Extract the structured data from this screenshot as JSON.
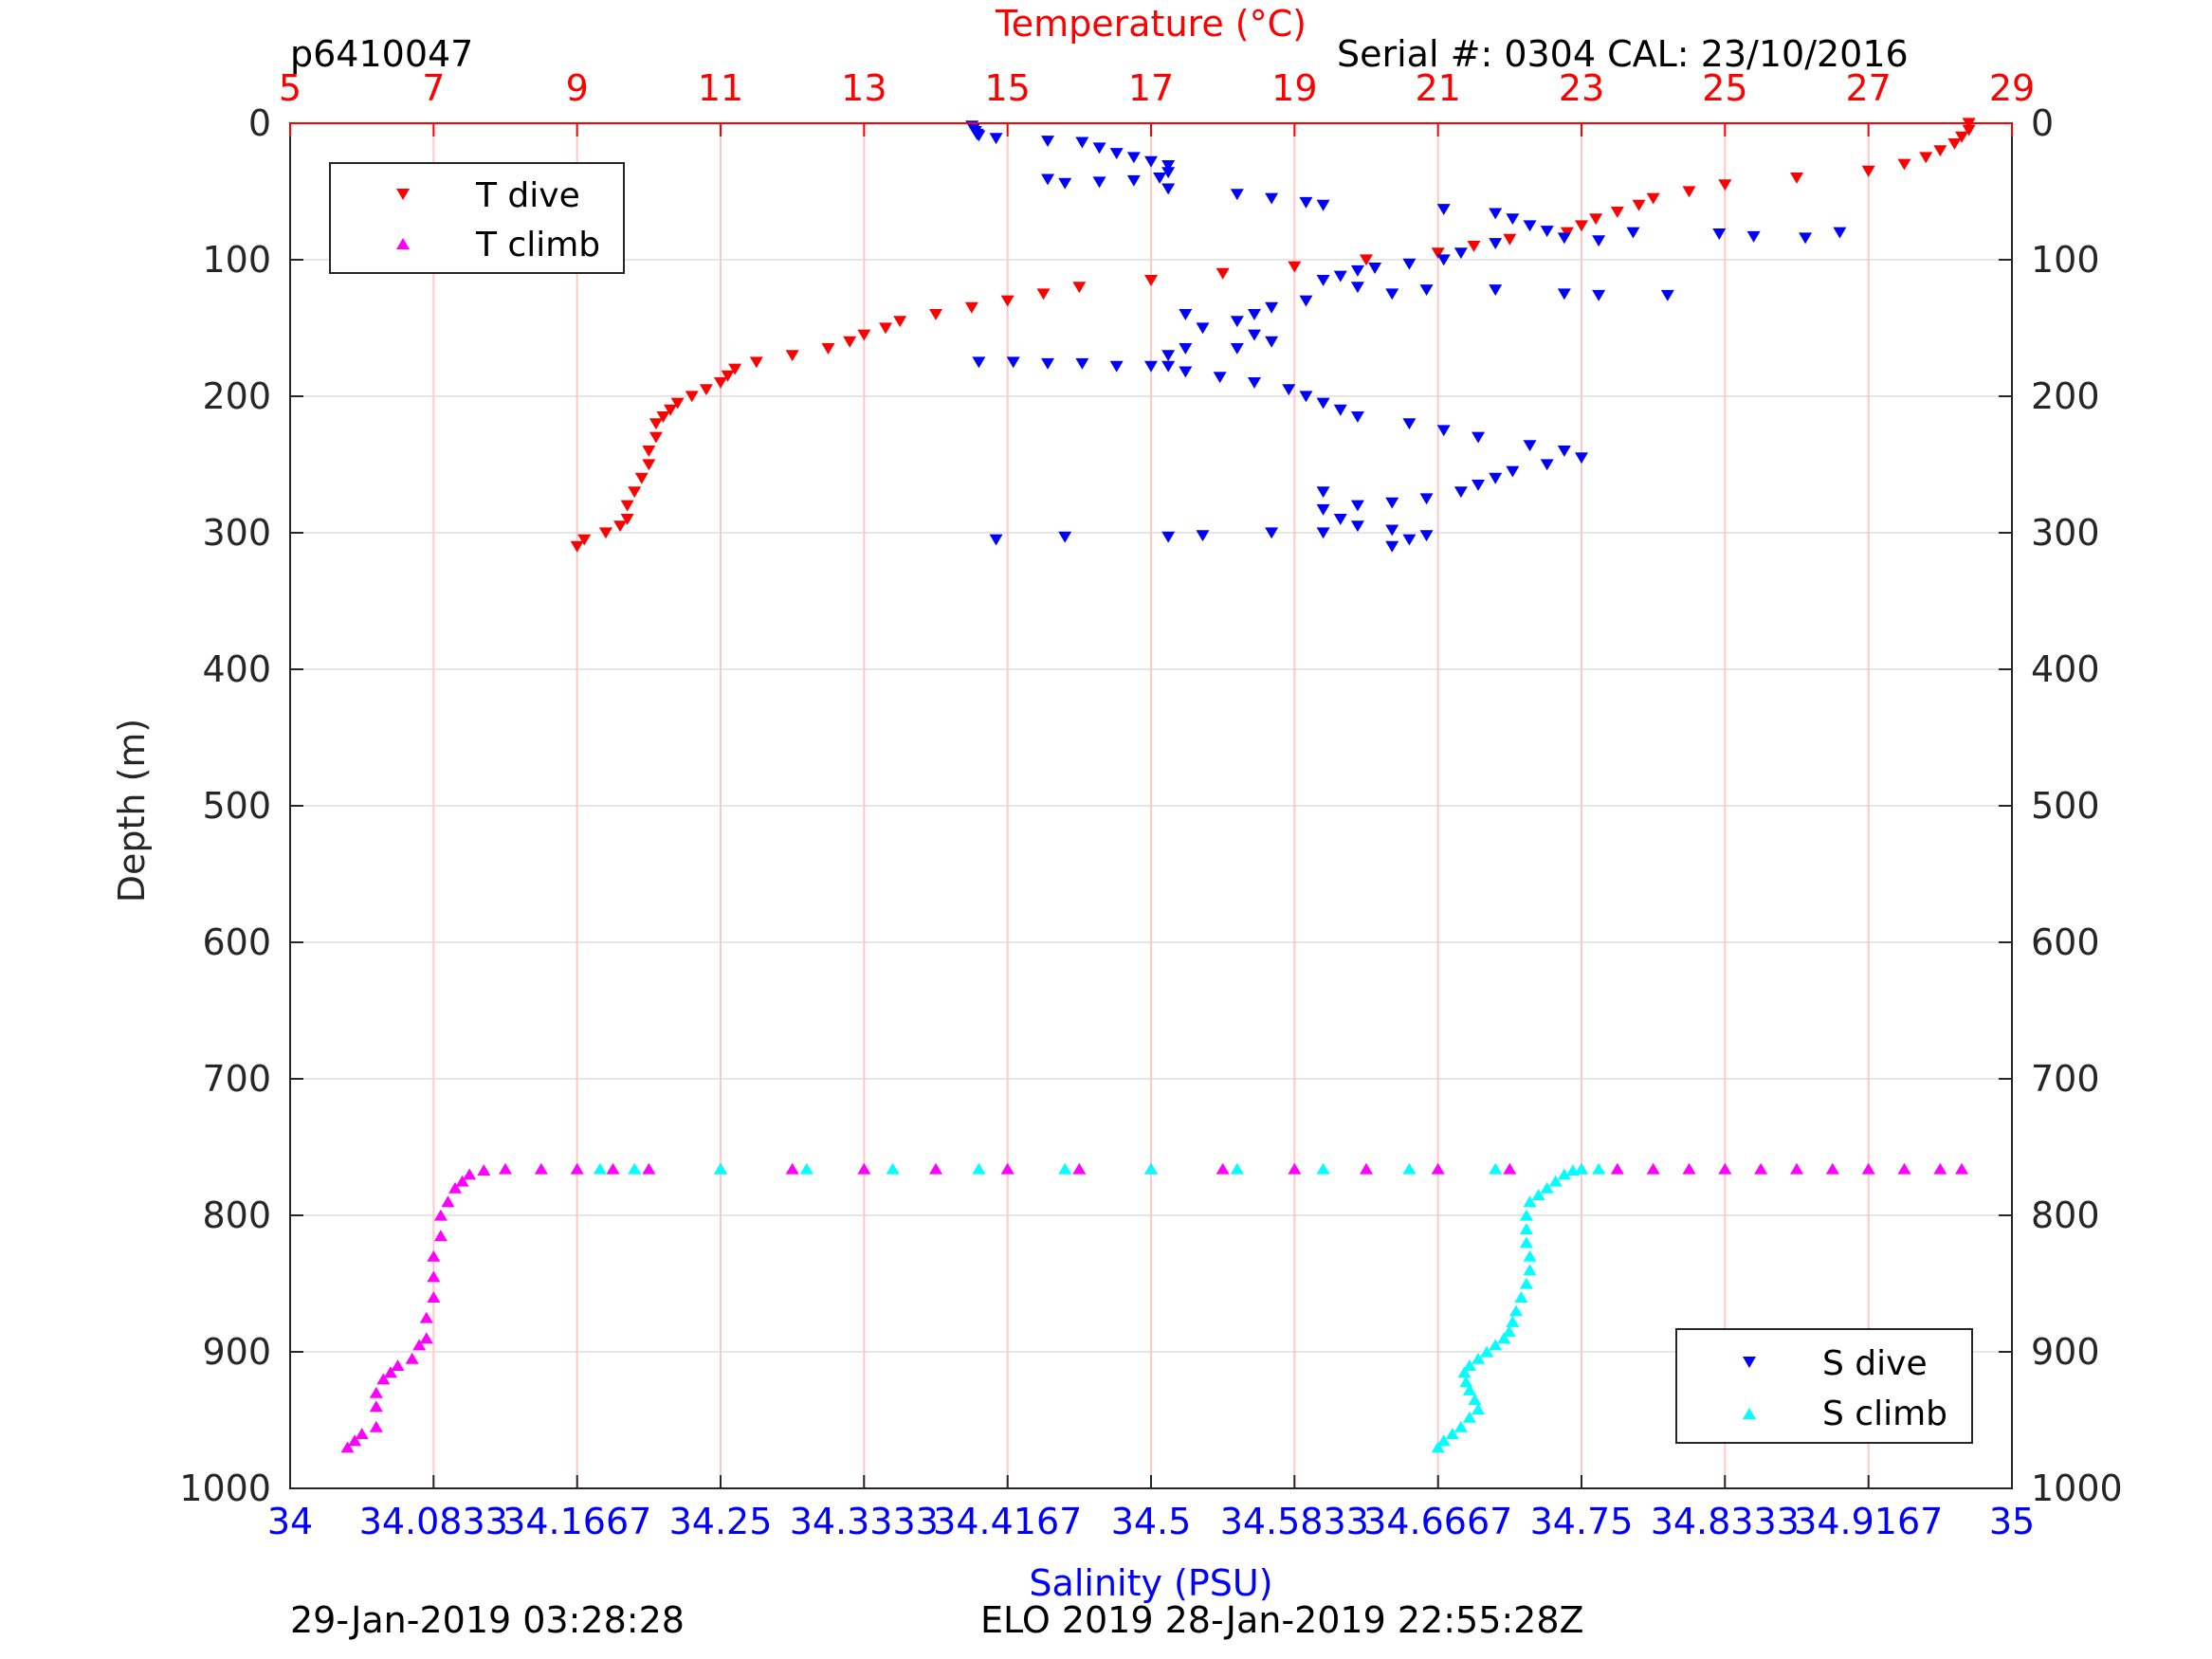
{
  "header": {
    "profile_id": "p6410047",
    "serial": "Serial #: 0304  CAL: 23/10/2016"
  },
  "footer": {
    "left": "29-Jan-2019 03:28:28",
    "center": "ELO 2019 28-Jan-2019 22:55:28Z"
  },
  "colors": {
    "t_dive": "#ff0000",
    "t_climb": "#ff00ff",
    "s_dive": "#0000ff",
    "s_climb": "#00ffff",
    "temp_axis": "#ff0000",
    "sal_axis": "#0000ff",
    "grid": "#e6e6e6",
    "temp_grid": "#ffc8c8"
  },
  "chart_data": {
    "type": "scatter",
    "title": "",
    "ylabel": "Depth (m)",
    "ylim": [
      0,
      1000
    ],
    "y_reversed": true,
    "y_ticks": [
      0,
      100,
      200,
      300,
      400,
      500,
      600,
      700,
      800,
      900,
      1000
    ],
    "y_tick_labels": [
      "0",
      "100",
      "200",
      "300",
      "400",
      "500",
      "600",
      "700",
      "800",
      "900",
      "1000"
    ],
    "temperature_axis": {
      "label": "Temperature (°C)",
      "position": "top",
      "lim": [
        5,
        29
      ],
      "ticks": [
        5,
        7,
        9,
        11,
        13,
        15,
        17,
        19,
        21,
        23,
        25,
        27,
        29
      ],
      "tick_labels": [
        "5",
        "7",
        "9",
        "11",
        "13",
        "15",
        "17",
        "19",
        "21",
        "23",
        "25",
        "27",
        "29"
      ]
    },
    "salinity_axis": {
      "label": "Salinity (PSU)",
      "position": "bottom",
      "lim": [
        34,
        35
      ],
      "ticks": [
        34,
        34.0833,
        34.1667,
        34.25,
        34.3333,
        34.4167,
        34.5,
        34.5833,
        34.6667,
        34.75,
        34.8333,
        34.9167,
        35
      ],
      "tick_labels": [
        "34",
        "34.0833",
        "34.1667",
        "34.25",
        "34.3333",
        "34.4167",
        "34.5",
        "34.5833",
        "34.6667",
        "34.75",
        "34.8333",
        "34.9167",
        "35"
      ]
    },
    "legends": [
      {
        "placement": "top-left",
        "entries": [
          {
            "label": "T dive",
            "marker": "triangle-down",
            "color": "#ff0000"
          },
          {
            "label": "T climb",
            "marker": "triangle-up",
            "color": "#ff00ff"
          }
        ]
      },
      {
        "placement": "bottom-right",
        "entries": [
          {
            "label": "S dive",
            "marker": "triangle-down",
            "color": "#0000ff"
          },
          {
            "label": "S climb",
            "marker": "triangle-up",
            "color": "#00ffff"
          }
        ]
      }
    ],
    "series": [
      {
        "name": "T dive",
        "axis": "temperature",
        "marker": "triangle-down",
        "color": "#ff0000",
        "points": [
          [
            28.4,
            0
          ],
          [
            28.4,
            5
          ],
          [
            28.3,
            10
          ],
          [
            28.2,
            15
          ],
          [
            28.0,
            20
          ],
          [
            27.8,
            25
          ],
          [
            27.5,
            30
          ],
          [
            27.0,
            35
          ],
          [
            26.0,
            40
          ],
          [
            25.0,
            45
          ],
          [
            24.5,
            50
          ],
          [
            24.0,
            55
          ],
          [
            23.8,
            60
          ],
          [
            23.5,
            65
          ],
          [
            23.2,
            70
          ],
          [
            23.0,
            75
          ],
          [
            22.8,
            80
          ],
          [
            22.0,
            85
          ],
          [
            21.5,
            90
          ],
          [
            21.0,
            95
          ],
          [
            20.0,
            100
          ],
          [
            19.0,
            105
          ],
          [
            18.0,
            110
          ],
          [
            17.0,
            115
          ],
          [
            16.0,
            120
          ],
          [
            15.5,
            125
          ],
          [
            15.0,
            130
          ],
          [
            14.5,
            135
          ],
          [
            14.0,
            140
          ],
          [
            13.5,
            145
          ],
          [
            13.3,
            150
          ],
          [
            13.0,
            155
          ],
          [
            12.8,
            160
          ],
          [
            12.5,
            165
          ],
          [
            12.0,
            170
          ],
          [
            11.5,
            175
          ],
          [
            11.2,
            180
          ],
          [
            11.1,
            185
          ],
          [
            11.0,
            190
          ],
          [
            10.8,
            195
          ],
          [
            10.6,
            200
          ],
          [
            10.4,
            205
          ],
          [
            10.3,
            210
          ],
          [
            10.2,
            215
          ],
          [
            10.1,
            220
          ],
          [
            10.1,
            230
          ],
          [
            10.0,
            240
          ],
          [
            10.0,
            250
          ],
          [
            9.9,
            260
          ],
          [
            9.8,
            270
          ],
          [
            9.7,
            280
          ],
          [
            9.7,
            290
          ],
          [
            9.6,
            295
          ],
          [
            9.4,
            300
          ],
          [
            9.1,
            305
          ],
          [
            9.0,
            310
          ]
        ]
      },
      {
        "name": "T climb",
        "axis": "temperature",
        "marker": "triangle-up",
        "color": "#ff00ff",
        "points": [
          [
            5.8,
            970
          ],
          [
            5.9,
            965
          ],
          [
            6.0,
            960
          ],
          [
            6.2,
            955
          ],
          [
            6.2,
            940
          ],
          [
            6.2,
            930
          ],
          [
            6.3,
            920
          ],
          [
            6.4,
            915
          ],
          [
            6.5,
            910
          ],
          [
            6.7,
            905
          ],
          [
            6.8,
            895
          ],
          [
            6.9,
            890
          ],
          [
            6.9,
            875
          ],
          [
            7.0,
            860
          ],
          [
            7.0,
            845
          ],
          [
            7.0,
            830
          ],
          [
            7.1,
            815
          ],
          [
            7.1,
            800
          ],
          [
            7.2,
            790
          ],
          [
            7.3,
            780
          ],
          [
            7.4,
            775
          ],
          [
            7.5,
            770
          ],
          [
            7.7,
            767
          ],
          [
            8.0,
            766
          ],
          [
            8.5,
            766
          ],
          [
            9.0,
            766
          ],
          [
            9.5,
            766
          ],
          [
            10.0,
            766
          ],
          [
            11.0,
            766
          ],
          [
            12.0,
            766
          ],
          [
            13.0,
            766
          ],
          [
            14.0,
            766
          ],
          [
            15.0,
            766
          ],
          [
            16.0,
            766
          ],
          [
            17.0,
            766
          ],
          [
            18.0,
            766
          ],
          [
            19.0,
            766
          ],
          [
            20.0,
            766
          ],
          [
            21.0,
            766
          ],
          [
            22.0,
            766
          ],
          [
            23.0,
            766
          ],
          [
            23.5,
            766
          ],
          [
            24.0,
            766
          ],
          [
            24.5,
            766
          ],
          [
            25.0,
            766
          ],
          [
            25.5,
            766
          ],
          [
            26.0,
            766
          ],
          [
            26.5,
            766
          ],
          [
            27.0,
            766
          ],
          [
            27.5,
            766
          ],
          [
            28.0,
            766
          ],
          [
            28.3,
            766
          ]
        ]
      },
      {
        "name": "S dive",
        "axis": "salinity",
        "marker": "triangle-down",
        "color": "#0000ff",
        "points": [
          [
            34.396,
            2
          ],
          [
            34.397,
            4
          ],
          [
            34.398,
            6
          ],
          [
            34.399,
            8
          ],
          [
            34.4,
            9
          ],
          [
            34.41,
            11
          ],
          [
            34.44,
            13
          ],
          [
            34.46,
            14
          ],
          [
            34.47,
            18
          ],
          [
            34.48,
            22
          ],
          [
            34.49,
            25
          ],
          [
            34.5,
            28
          ],
          [
            34.51,
            31
          ],
          [
            34.51,
            36
          ],
          [
            34.505,
            40
          ],
          [
            34.49,
            42
          ],
          [
            34.47,
            43
          ],
          [
            34.45,
            44
          ],
          [
            34.44,
            41
          ],
          [
            34.51,
            48
          ],
          [
            34.55,
            52
          ],
          [
            34.57,
            55
          ],
          [
            34.59,
            58
          ],
          [
            34.6,
            60
          ],
          [
            34.67,
            63
          ],
          [
            34.7,
            66
          ],
          [
            34.71,
            70
          ],
          [
            34.72,
            75
          ],
          [
            34.73,
            79
          ],
          [
            34.74,
            84
          ],
          [
            34.76,
            86
          ],
          [
            34.78,
            80
          ],
          [
            34.83,
            81
          ],
          [
            34.85,
            83
          ],
          [
            34.88,
            84
          ],
          [
            34.9,
            80
          ],
          [
            34.7,
            88
          ],
          [
            34.68,
            95
          ],
          [
            34.67,
            100
          ],
          [
            34.65,
            103
          ],
          [
            34.63,
            106
          ],
          [
            34.62,
            108
          ],
          [
            34.61,
            112
          ],
          [
            34.6,
            115
          ],
          [
            34.62,
            120
          ],
          [
            34.64,
            125
          ],
          [
            34.66,
            122
          ],
          [
            34.7,
            122
          ],
          [
            34.74,
            125
          ],
          [
            34.76,
            126
          ],
          [
            34.8,
            126
          ],
          [
            34.59,
            130
          ],
          [
            34.57,
            135
          ],
          [
            34.56,
            140
          ],
          [
            34.55,
            145
          ],
          [
            34.52,
            140
          ],
          [
            34.53,
            150
          ],
          [
            34.56,
            155
          ],
          [
            34.57,
            160
          ],
          [
            34.55,
            165
          ],
          [
            34.52,
            165
          ],
          [
            34.51,
            170
          ],
          [
            34.51,
            178
          ],
          [
            34.52,
            182
          ],
          [
            34.54,
            186
          ],
          [
            34.56,
            190
          ],
          [
            34.58,
            195
          ],
          [
            34.59,
            200
          ],
          [
            34.6,
            205
          ],
          [
            34.61,
            210
          ],
          [
            34.62,
            215
          ],
          [
            34.65,
            220
          ],
          [
            34.67,
            225
          ],
          [
            34.69,
            230
          ],
          [
            34.72,
            236
          ],
          [
            34.74,
            240
          ],
          [
            34.75,
            245
          ],
          [
            34.73,
            250
          ],
          [
            34.71,
            255
          ],
          [
            34.7,
            260
          ],
          [
            34.69,
            265
          ],
          [
            34.68,
            270
          ],
          [
            34.66,
            275
          ],
          [
            34.64,
            278
          ],
          [
            34.62,
            280
          ],
          [
            34.6,
            270
          ],
          [
            34.6,
            283
          ],
          [
            34.61,
            290
          ],
          [
            34.62,
            295
          ],
          [
            34.64,
            298
          ],
          [
            34.66,
            302
          ],
          [
            34.65,
            305
          ],
          [
            34.64,
            310
          ],
          [
            34.6,
            300
          ],
          [
            34.57,
            300
          ],
          [
            34.53,
            302
          ],
          [
            34.51,
            303
          ],
          [
            34.45,
            303
          ],
          [
            34.41,
            305
          ],
          [
            34.4,
            175
          ],
          [
            34.42,
            175
          ],
          [
            34.44,
            176
          ],
          [
            34.46,
            176
          ],
          [
            34.48,
            178
          ],
          [
            34.5,
            178
          ]
        ]
      },
      {
        "name": "S climb",
        "axis": "salinity",
        "marker": "triangle-up",
        "color": "#00ffff",
        "points": [
          [
            34.6667,
            970
          ],
          [
            34.67,
            965
          ],
          [
            34.675,
            960
          ],
          [
            34.68,
            955
          ],
          [
            34.685,
            948
          ],
          [
            34.69,
            942
          ],
          [
            34.688,
            935
          ],
          [
            34.685,
            928
          ],
          [
            34.683,
            922
          ],
          [
            34.682,
            915
          ],
          [
            34.685,
            910
          ],
          [
            34.69,
            905
          ],
          [
            34.695,
            900
          ],
          [
            34.7,
            895
          ],
          [
            34.705,
            890
          ],
          [
            34.708,
            885
          ],
          [
            34.71,
            878
          ],
          [
            34.712,
            870
          ],
          [
            34.715,
            860
          ],
          [
            34.718,
            850
          ],
          [
            34.72,
            840
          ],
          [
            34.72,
            830
          ],
          [
            34.718,
            820
          ],
          [
            34.718,
            810
          ],
          [
            34.718,
            800
          ],
          [
            34.72,
            790
          ],
          [
            34.725,
            785
          ],
          [
            34.73,
            780
          ],
          [
            34.735,
            775
          ],
          [
            34.74,
            770
          ],
          [
            34.745,
            767
          ],
          [
            34.75,
            766
          ],
          [
            34.76,
            766
          ],
          [
            34.7,
            766
          ],
          [
            34.65,
            766
          ],
          [
            34.6,
            766
          ],
          [
            34.55,
            766
          ],
          [
            34.5,
            766
          ],
          [
            34.45,
            766
          ],
          [
            34.4,
            766
          ],
          [
            34.35,
            766
          ],
          [
            34.3,
            766
          ],
          [
            34.25,
            766
          ],
          [
            34.2,
            766
          ],
          [
            34.18,
            766
          ]
        ]
      }
    ]
  }
}
